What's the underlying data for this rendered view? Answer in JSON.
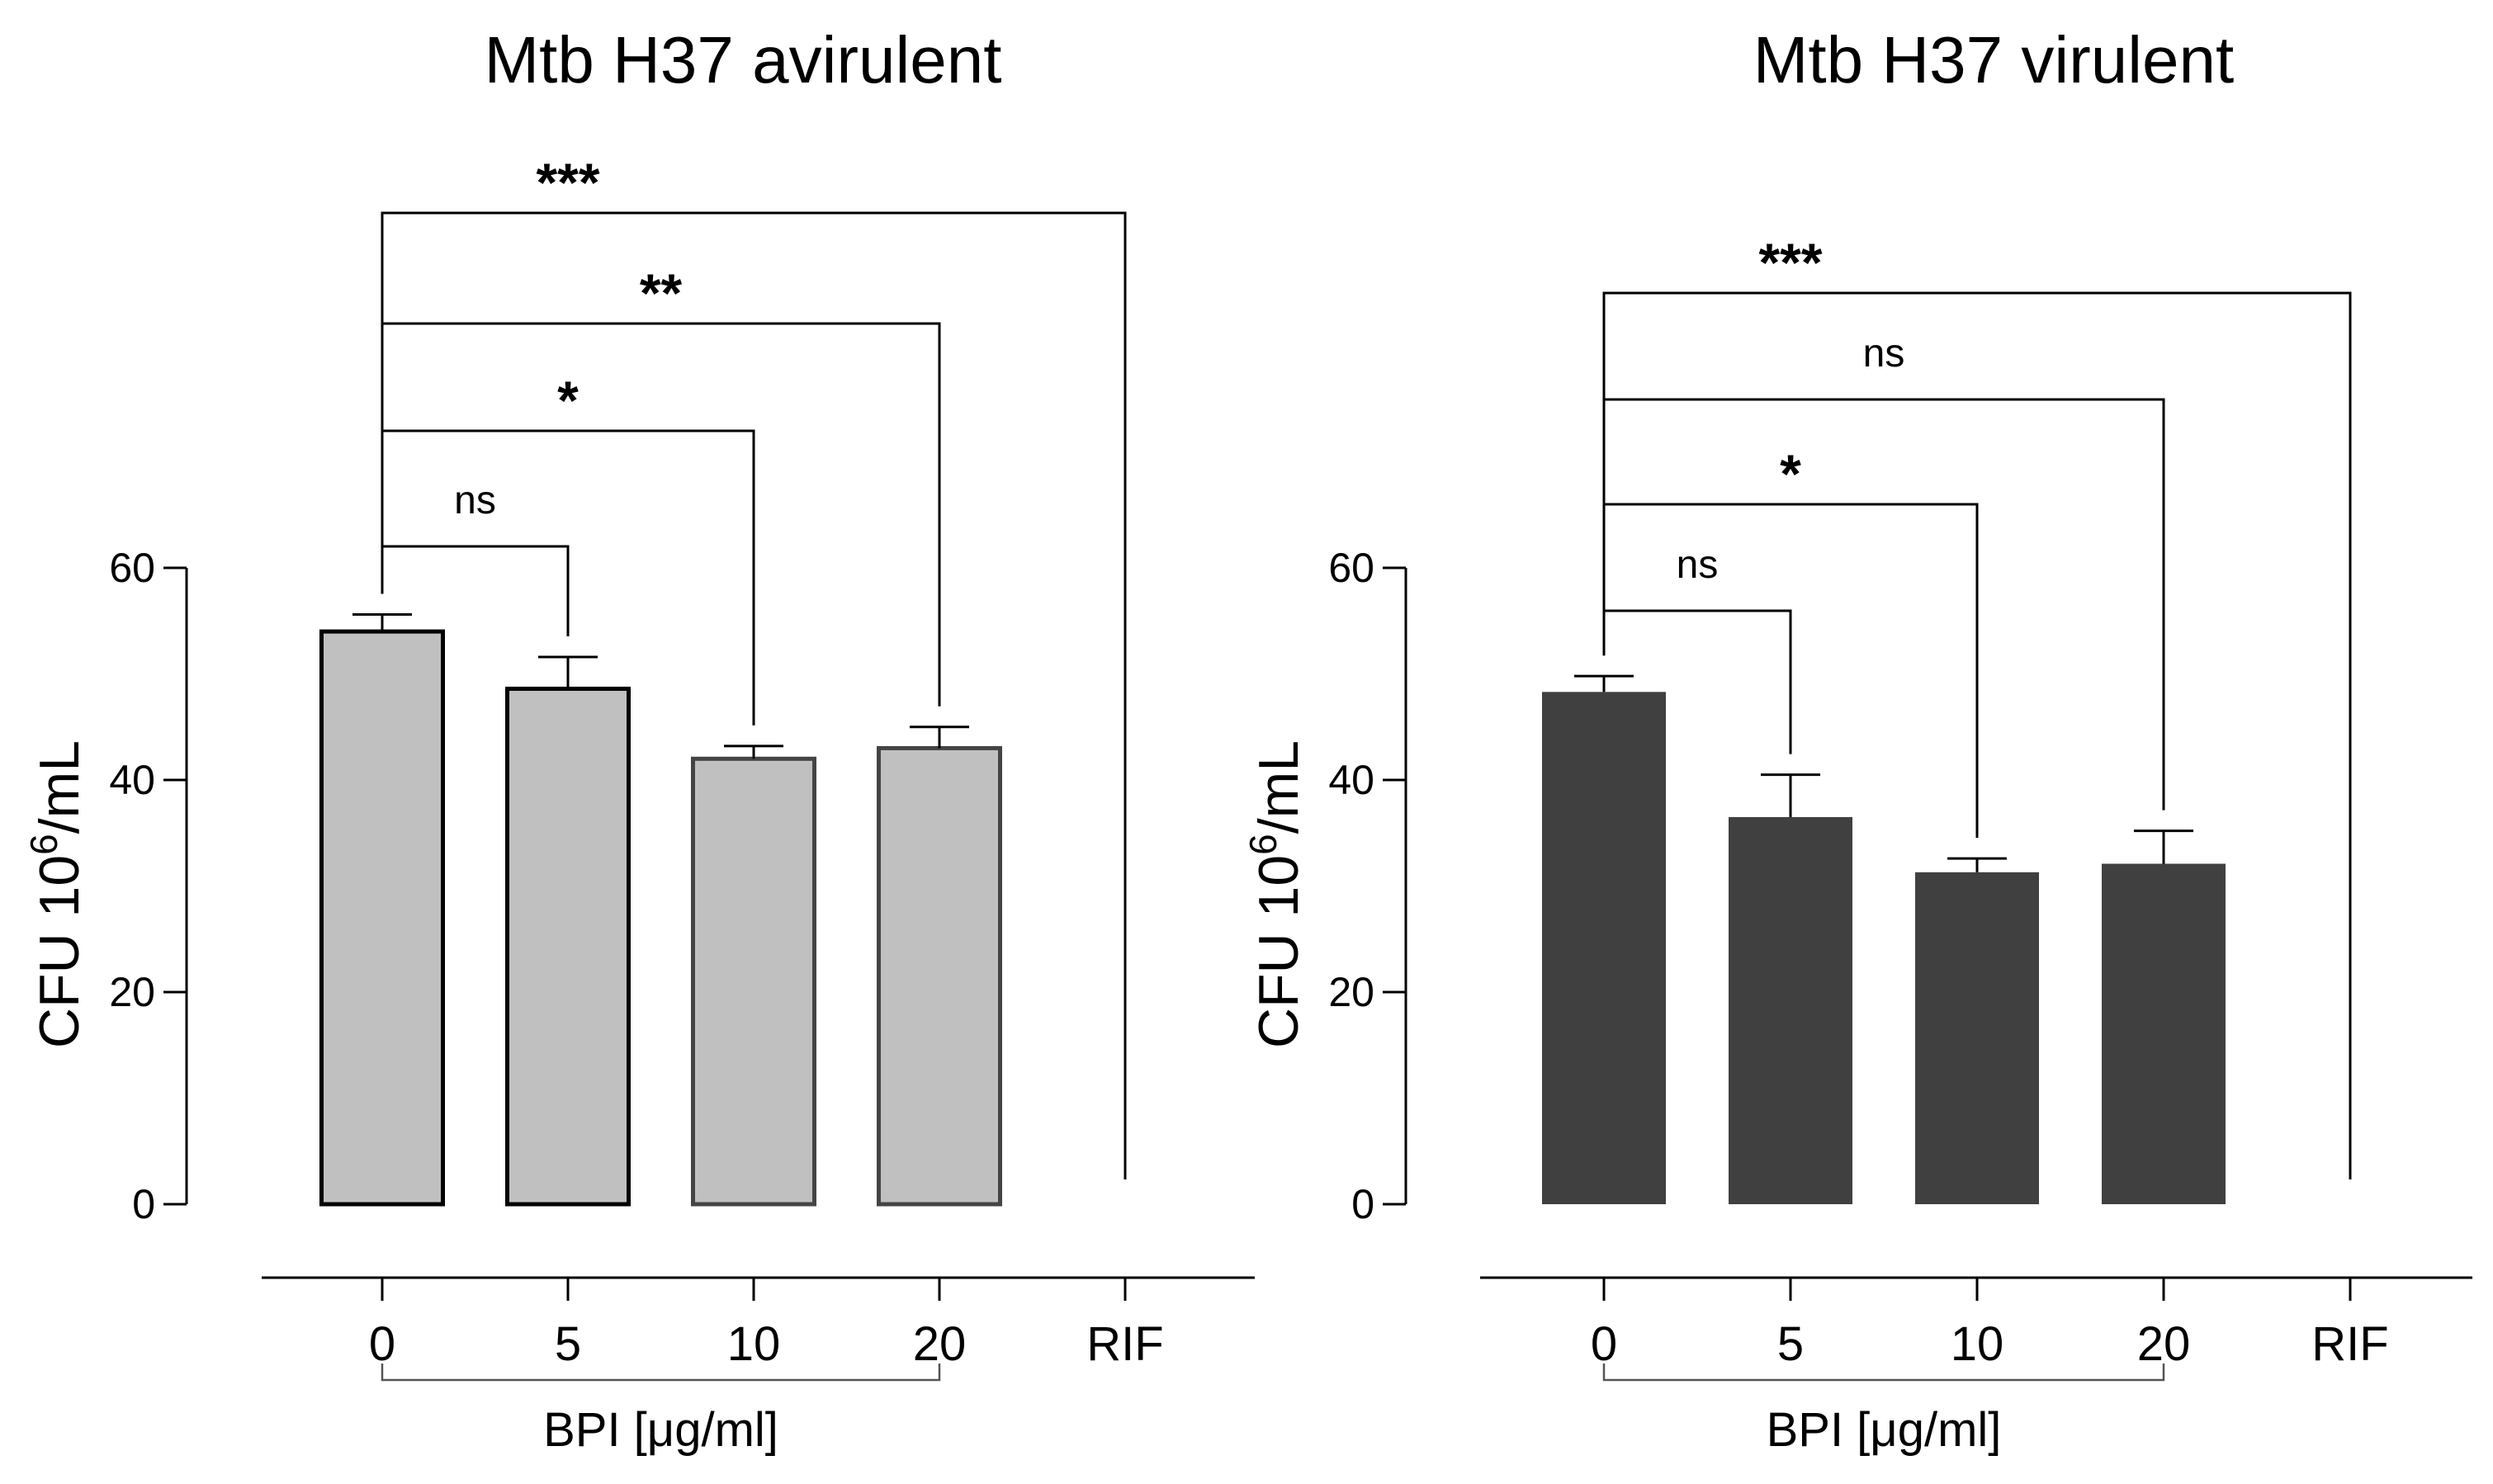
{
  "chart_data": [
    {
      "type": "bar",
      "title": "Mtb H37 avirulent",
      "xlabel": "BPI [μg/ml]",
      "ylabel_base": "CFU 10",
      "ylabel_sup": "6",
      "ylabel_unit": "/mL",
      "ylim": [
        0,
        60
      ],
      "yticks": [
        "0",
        "20",
        "40",
        "60"
      ],
      "categories": [
        "0",
        "5",
        "10",
        "20",
        "RIF"
      ],
      "values": [
        54,
        48.6,
        42,
        43,
        0
      ],
      "errors": [
        1.6,
        3.0,
        1.2,
        2.0,
        0
      ],
      "bar_fill": "#c0c0c0",
      "bar_strokes": [
        "#000000",
        "#000000",
        "#444444",
        "#444444",
        "#444444"
      ],
      "grouped_categories": [
        "0",
        "5",
        "10",
        "20"
      ],
      "significance": [
        {
          "from": 0,
          "to": 1,
          "label": "ns"
        },
        {
          "from": 0,
          "to": 2,
          "label": "*"
        },
        {
          "from": 0,
          "to": 3,
          "label": "**"
        },
        {
          "from": 0,
          "to": 4,
          "label": "***"
        }
      ]
    },
    {
      "type": "bar",
      "title": "Mtb H37 virulent",
      "xlabel": "BPI [μg/ml]",
      "ylabel_base": "CFU 10",
      "ylabel_sup": "6",
      "ylabel_unit": "/mL",
      "ylim": [
        0,
        60
      ],
      "yticks": [
        "0",
        "20",
        "40",
        "60"
      ],
      "categories": [
        "0",
        "5",
        "10",
        "20",
        "RIF"
      ],
      "values": [
        48.3,
        36.5,
        31.3,
        32.1,
        0
      ],
      "errors": [
        1.5,
        4.0,
        1.3,
        3.1,
        0
      ],
      "bar_fill": "#404040",
      "bar_strokes": [
        "#404040",
        "#404040",
        "#404040",
        "#404040",
        "#404040"
      ],
      "grouped_categories": [
        "0",
        "5",
        "10",
        "20"
      ],
      "significance": [
        {
          "from": 0,
          "to": 1,
          "label": "ns"
        },
        {
          "from": 0,
          "to": 2,
          "label": "*"
        },
        {
          "from": 0,
          "to": 3,
          "label": "ns"
        },
        {
          "from": 0,
          "to": 4,
          "label": "***"
        }
      ]
    }
  ]
}
